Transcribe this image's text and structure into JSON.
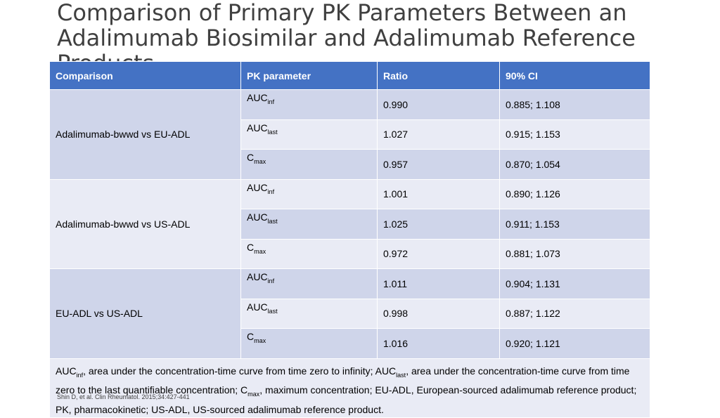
{
  "slide": {
    "title": "Comparison of Primary PK Parameters Between an Adalimumab Biosimilar and Adalimumab Reference Products",
    "source": "Shin D, et al. Clin Rheumatol. 2015;34:427-441"
  },
  "table": {
    "headers": [
      "Comparison",
      "PK parameter",
      "Ratio",
      "90% CI"
    ],
    "groups": [
      {
        "comparison": "Adalimumab-bwwd vs EU-ADL",
        "rows": [
          {
            "param_base": "AUC",
            "param_sub": "inf",
            "ratio": "0.990",
            "ci": "0.885; 1.108"
          },
          {
            "param_base": "AUC",
            "param_sub": "last",
            "ratio": "1.027",
            "ci": "0.915; 1.153"
          },
          {
            "param_base": "C",
            "param_sub": "max",
            "ratio": "0.957",
            "ci": "0.870; 1.054"
          }
        ]
      },
      {
        "comparison": "Adalimumab-bwwd vs US-ADL",
        "rows": [
          {
            "param_base": "AUC",
            "param_sub": "inf",
            "ratio": "1.001",
            "ci": "0.890; 1.126"
          },
          {
            "param_base": "AUC",
            "param_sub": "last",
            "ratio": "1.025",
            "ci": "0.911; 1.153"
          },
          {
            "param_base": "C",
            "param_sub": "max",
            "ratio": "0.972",
            "ci": "0.881; 1.073"
          }
        ]
      },
      {
        "comparison": "EU-ADL vs US-ADL",
        "rows": [
          {
            "param_base": "AUC",
            "param_sub": "inf",
            "ratio": "1.011",
            "ci": "0.904; 1.131"
          },
          {
            "param_base": "AUC",
            "param_sub": "last",
            "ratio": "0.998",
            "ci": "0.887; 1.122"
          },
          {
            "param_base": "C",
            "param_sub": "max",
            "ratio": "1.016",
            "ci": "0.920; 1.121"
          }
        ]
      }
    ],
    "footnote": {
      "p1": "AUC",
      "s1": "inf",
      "p2": ", area under the concentration-time curve from time zero to infinity; AUC",
      "s2": "last",
      "p3": ", area under the concentration-time curve from time zero to the last quantifiable concentration; C",
      "s3": "max",
      "p4": ", maximum concentration; EU-ADL, European-sourced adalimumab reference product; PK, pharmacokinetic; US-ADL, US-sourced adalimumab reference product."
    }
  },
  "colors": {
    "header_bg": "#4472c4",
    "band_dark": "#cfd5ea",
    "band_light": "#e9ebf5"
  }
}
